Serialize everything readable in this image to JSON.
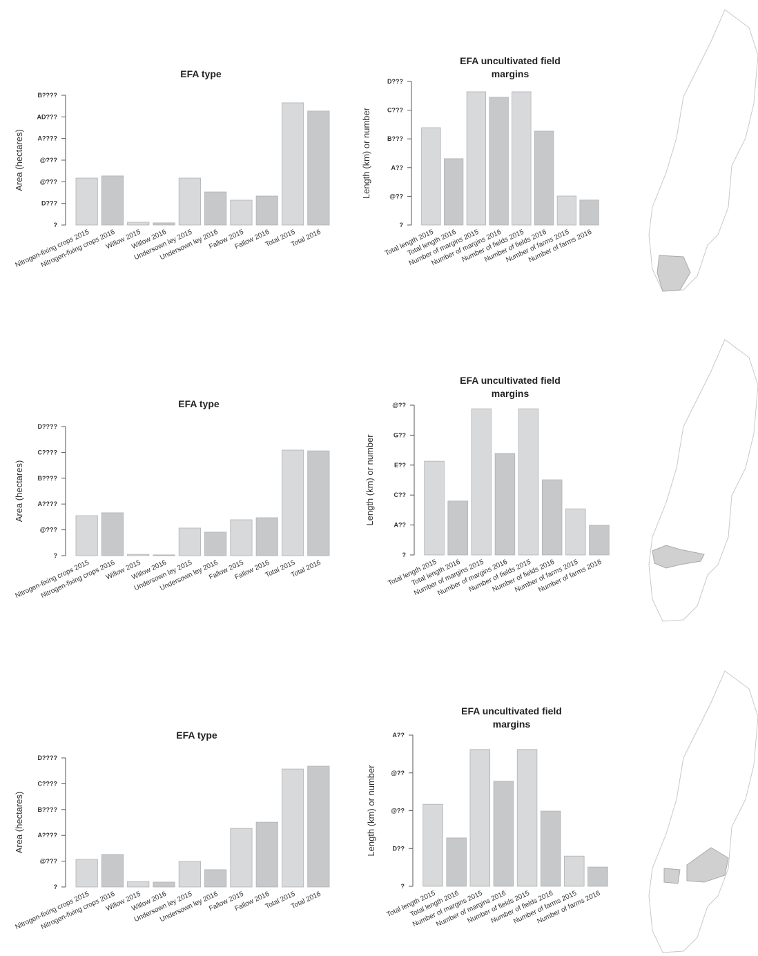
{
  "chart_data": [
    {
      "type": "bar",
      "title": "EFA type",
      "y_label": "Area (hectares)",
      "categories": [
        "Nitrogen-fixing crops 2015",
        "Nitrogen-fixing crops 2016",
        "Willow 2015",
        "Willow 2016",
        "Undersown ley 2015",
        "Undersown ley 2016",
        "Fallow 2015",
        "Fallow 2016",
        "Total 2015",
        "Total 2016"
      ],
      "values": [
        2.17,
        2.27,
        0.13,
        0.1,
        2.17,
        1.53,
        1.15,
        1.34,
        5.65,
        5.27
      ],
      "colors": [
        "#d8d9db",
        "#c7c8ca",
        "#d8d9db",
        "#c7c8ca",
        "#d8d9db",
        "#c7c8ca",
        "#d8d9db",
        "#c7c8ca",
        "#d8d9db",
        "#c7c8ca"
      ],
      "ylim": [
        0,
        6
      ],
      "yticks": [
        {
          "value": 0,
          "label": "?"
        },
        {
          "value": 1,
          "label": "D???"
        },
        {
          "value": 2,
          "label": "@???"
        },
        {
          "value": 3,
          "label": "@???"
        },
        {
          "value": 4,
          "label": "A????"
        },
        {
          "value": 5,
          "label": "AD???"
        },
        {
          "value": 6,
          "label": "B????"
        }
      ]
    },
    {
      "type": "bar",
      "title": "EFA uncultivated field margins",
      "y_label": "Length (km) or number",
      "categories": [
        "Total length 2015",
        "Total length 2016",
        "Number of margins 2015",
        "Number of margins 2016",
        "Number of fields 2015",
        "Number of fields 2016",
        "Number of farms 2015",
        "Number of farms 2016"
      ],
      "values": [
        3.39,
        2.31,
        4.64,
        4.45,
        4.64,
        3.27,
        1.01,
        0.87
      ],
      "colors": [
        "#d8d9db",
        "#c7c8ca",
        "#d8d9db",
        "#c7c8ca",
        "#d8d9db",
        "#c7c8ca",
        "#d8d9db",
        "#c7c8ca"
      ],
      "ylim": [
        0,
        5
      ],
      "yticks": [
        {
          "value": 0,
          "label": "?"
        },
        {
          "value": 1,
          "label": "@??"
        },
        {
          "value": 2,
          "label": "A??"
        },
        {
          "value": 3,
          "label": "B???"
        },
        {
          "value": 4,
          "label": "C???"
        },
        {
          "value": 5,
          "label": "D???"
        }
      ]
    },
    {
      "type": "bar",
      "title": "EFA type",
      "y_label": "Area (hectares)",
      "categories": [
        "Nitrogen-fixing crops 2015",
        "Nitrogen-fixing crops 2016",
        "Willow 2015",
        "Willow 2016",
        "Undersown ley 2015",
        "Undersown ley 2016",
        "Fallow 2015",
        "Fallow 2016",
        "Total 2015",
        "Total 2016"
      ],
      "values": [
        1.55,
        1.66,
        0.05,
        0.03,
        1.07,
        0.91,
        1.39,
        1.47,
        4.09,
        4.06
      ],
      "colors": [
        "#d8d9db",
        "#c7c8ca",
        "#d8d9db",
        "#c7c8ca",
        "#d8d9db",
        "#c7c8ca",
        "#d8d9db",
        "#c7c8ca",
        "#d8d9db",
        "#c7c8ca"
      ],
      "ylim": [
        0,
        5
      ],
      "yticks": [
        {
          "value": 0,
          "label": "?"
        },
        {
          "value": 1,
          "label": "@???"
        },
        {
          "value": 2,
          "label": "A????"
        },
        {
          "value": 3,
          "label": "B????"
        },
        {
          "value": 4,
          "label": "C????"
        },
        {
          "value": 5,
          "label": "D????"
        }
      ]
    },
    {
      "type": "bar",
      "title": "EFA uncultivated field margins",
      "y_label": "Length (km) or number",
      "categories": [
        "Total length 2015",
        "Total length 2016",
        "Number of margins 2015",
        "Number of margins 2016",
        "Number of fields 2015",
        "Number of fields 2016",
        "Number of farms 2015",
        "Number of farms 2016"
      ],
      "values": [
        3.13,
        1.8,
        4.88,
        3.39,
        4.88,
        2.51,
        1.54,
        0.99
      ],
      "colors": [
        "#d8d9db",
        "#c7c8ca",
        "#d8d9db",
        "#c7c8ca",
        "#d8d9db",
        "#c7c8ca",
        "#d8d9db",
        "#c7c8ca"
      ],
      "ylim": [
        0,
        5
      ],
      "yticks": [
        {
          "value": 0,
          "label": "?"
        },
        {
          "value": 1,
          "label": "A??"
        },
        {
          "value": 2,
          "label": "C??"
        },
        {
          "value": 3,
          "label": "E??"
        },
        {
          "value": 4,
          "label": "G??"
        },
        {
          "value": 5,
          "label": "@??"
        }
      ]
    },
    {
      "type": "bar",
      "title": "EFA type",
      "y_label": "Area (hectares)",
      "categories": [
        "Nitrogen-fixing crops 2015",
        "Nitrogen-fixing crops 2016",
        "Willow 2015",
        "Willow 2016",
        "Undersown ley 2015",
        "Undersown ley 2016",
        "Fallow 2015",
        "Fallow 2016",
        "Total 2015",
        "Total 2016"
      ],
      "values": [
        1.07,
        1.26,
        0.21,
        0.19,
        0.99,
        0.67,
        2.27,
        2.51,
        4.57,
        4.68
      ],
      "colors": [
        "#d8d9db",
        "#c7c8ca",
        "#d8d9db",
        "#c7c8ca",
        "#d8d9db",
        "#c7c8ca",
        "#d8d9db",
        "#c7c8ca",
        "#d8d9db",
        "#c7c8ca"
      ],
      "ylim": [
        0,
        5
      ],
      "yticks": [
        {
          "value": 0,
          "label": "?"
        },
        {
          "value": 1,
          "label": "@???"
        },
        {
          "value": 2,
          "label": "A????"
        },
        {
          "value": 3,
          "label": "B????"
        },
        {
          "value": 4,
          "label": "C????"
        },
        {
          "value": 5,
          "label": "D????"
        }
      ]
    },
    {
      "type": "bar",
      "title": "EFA uncultivated field margins",
      "y_label": "Length (km) or number",
      "categories": [
        "Total length 2015",
        "Total length 2016",
        "Number of margins 2015",
        "Number of margins 2016",
        "Number of fields 2015",
        "Number of fields 2016",
        "Number of farms 2015",
        "Number of farms 2016"
      ],
      "values": [
        2.17,
        1.28,
        3.62,
        2.78,
        3.62,
        1.99,
        0.8,
        0.51
      ],
      "colors": [
        "#d8d9db",
        "#c7c8ca",
        "#d8d9db",
        "#c7c8ca",
        "#d8d9db",
        "#c7c8ca",
        "#d8d9db",
        "#c7c8ca"
      ],
      "ylim": [
        0,
        4
      ],
      "yticks": [
        {
          "value": 0,
          "label": "?"
        },
        {
          "value": 1,
          "label": "D??"
        },
        {
          "value": 2,
          "label": "@??"
        },
        {
          "value": 3,
          "label": "@??"
        },
        {
          "value": 4,
          "label": "A??"
        }
      ]
    }
  ]
}
